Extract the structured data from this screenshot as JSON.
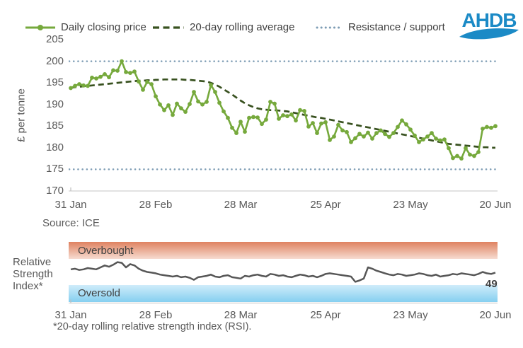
{
  "legend": {
    "items": [
      {
        "label": "Daily closing price",
        "type": "line-with-marker",
        "color": "#76A93C"
      },
      {
        "label": "20-day rolling average",
        "type": "dashed-line",
        "color": "#38511F"
      },
      {
        "label": "Resistance / support",
        "type": "dotted-line",
        "color": "#7D9CB4"
      }
    ]
  },
  "logo": {
    "text": "AHDB",
    "color": "#1B8AC6",
    "icon": "wave-swoosh"
  },
  "source_note": "Source: ICE",
  "footnote": "*20-day rolling relative strength index (RSI).",
  "rsi_panel": {
    "axis_label_lines": [
      "Relative",
      "Strength",
      "Index*"
    ],
    "overbought_label": "Overbought",
    "oversold_label": "Oversold",
    "last_value_label": "49"
  },
  "colors": {
    "price_green": "#76A93C",
    "ma_dark_green": "#38511F",
    "dotted_steel": "#7D9CB4",
    "axis_gray": "#D9D9D9",
    "rsi_line_gray": "#575757",
    "overbought_top": "#DF8260",
    "overbought_bottom": "#F6DBD0",
    "oversold_top": "#CFECFA",
    "oversold_bottom": "#85CFF0"
  },
  "chart_data": [
    {
      "type": "line",
      "title": "",
      "xlabel": "",
      "ylabel": "£ per tonne",
      "ylim": [
        170,
        205
      ],
      "yticks": [
        205,
        200,
        195,
        190,
        185,
        180,
        175,
        170
      ],
      "x_tick_labels": [
        "31 Jan",
        "28 Feb",
        "28 Mar",
        "25 Apr",
        "23 May",
        "20 Jun"
      ],
      "grid": false,
      "legend_position": "top",
      "resistance_level": 200,
      "support_level": 175,
      "series": [
        {
          "name": "Daily closing price",
          "style": "solid-markers",
          "color": "#76A93C",
          "values": [
            193.8,
            194.3,
            194.7,
            194.4,
            194.3,
            196.2,
            196.0,
            196.4,
            197.0,
            196.3,
            197.9,
            197.8,
            200.0,
            197.5,
            197.3,
            197.6,
            195.3,
            193.4,
            195.2,
            194.7,
            191.9,
            190.0,
            188.7,
            189.8,
            187.6,
            190.2,
            189.1,
            188.3,
            190.1,
            192.9,
            190.7,
            190.0,
            190.6,
            194.5,
            192.9,
            190.4,
            188.4,
            186.9,
            184.6,
            183.4,
            186.0,
            183.7,
            186.9,
            187.1,
            187.0,
            185.5,
            186.5,
            190.6,
            190.2,
            186.7,
            187.5,
            187.3,
            187.7,
            186.3,
            188.7,
            188.5,
            184.9,
            185.7,
            183.4,
            185.6,
            185.9,
            181.8,
            182.6,
            185.3,
            184.0,
            183.6,
            181.3,
            182.2,
            183.2,
            182.6,
            183.5,
            182.1,
            183.4,
            184.0,
            183.2,
            182.5,
            183.4,
            184.8,
            186.3,
            185.4,
            184.2,
            182.8,
            181.3,
            181.9,
            182.6,
            183.4,
            182.1,
            181.7,
            181.9,
            179.9,
            177.6,
            178.1,
            177.5,
            179.9,
            178.4,
            178.1,
            179.0,
            184.4,
            184.8,
            184.6,
            185.0
          ]
        },
        {
          "name": "20-day rolling average",
          "style": "dashed",
          "color": "#38511F",
          "values": [
            193.9,
            194.0,
            194.1,
            194.2,
            194.3,
            194.4,
            194.5,
            194.6,
            194.7,
            194.8,
            194.9,
            195.0,
            195.1,
            195.2,
            195.3,
            195.4,
            195.5,
            195.5,
            195.6,
            195.6,
            195.7,
            195.7,
            195.8,
            195.8,
            195.8,
            195.8,
            195.8,
            195.7,
            195.7,
            195.6,
            195.5,
            195.4,
            195.3,
            195.0,
            194.6,
            194.1,
            193.5,
            192.9,
            192.3,
            191.6,
            190.9,
            190.3,
            189.8,
            189.4,
            189.1,
            188.9,
            188.8,
            188.7,
            188.7,
            188.6,
            188.5,
            188.4,
            188.2,
            188.0,
            187.8,
            187.6,
            187.4,
            187.2,
            187.0,
            186.9,
            186.7,
            186.5,
            186.3,
            186.1,
            185.9,
            185.7,
            185.5,
            185.3,
            185.1,
            184.9,
            184.7,
            184.5,
            184.3,
            184.1,
            183.9,
            183.7,
            183.5,
            183.3,
            183.1,
            182.9,
            182.7,
            182.5,
            182.3,
            182.1,
            181.9,
            181.7,
            181.5,
            181.3,
            181.1,
            180.9,
            180.8,
            180.7,
            180.6,
            180.5,
            180.4,
            180.3,
            180.2,
            180.1,
            180.1,
            180.0,
            180.0
          ]
        },
        {
          "name": "Resistance / support",
          "style": "dotted-levels",
          "color": "#7D9CB4",
          "levels": [
            200,
            175
          ]
        }
      ],
      "source": "Source: ICE"
    },
    {
      "type": "line",
      "title": "Relative Strength Index*",
      "ylim": [
        0,
        100
      ],
      "x_tick_labels": [
        "31 Jan",
        "28 Feb",
        "28 Mar",
        "25 Apr",
        "23 May",
        "20 Jun"
      ],
      "bands": [
        {
          "label": "Overbought",
          "range": [
            70,
            100
          ]
        },
        {
          "label": "Oversold",
          "range": [
            0,
            30
          ]
        }
      ],
      "last_value": 49,
      "series": [
        {
          "name": "20-day rolling RSI",
          "style": "solid",
          "color": "#575757",
          "values": [
            54,
            55,
            53,
            54,
            56,
            55,
            54,
            57,
            60,
            58,
            61,
            65,
            64,
            57,
            62,
            60,
            55,
            52,
            50,
            49,
            48,
            46,
            45,
            44,
            43,
            44,
            42,
            43,
            41,
            38,
            42,
            43,
            44,
            46,
            43,
            42,
            44,
            45,
            42,
            41,
            40,
            44,
            43,
            45,
            46,
            44,
            43,
            47,
            46,
            44,
            45,
            43,
            42,
            44,
            46,
            45,
            43,
            44,
            42,
            44,
            47,
            48,
            47,
            46,
            45,
            44,
            43,
            35,
            37,
            40,
            57,
            55,
            52,
            50,
            48,
            46,
            45,
            47,
            46,
            44,
            45,
            46,
            48,
            47,
            45,
            44,
            46,
            43,
            44,
            45,
            47,
            46,
            48,
            47,
            46,
            45,
            47,
            50,
            48,
            47,
            49
          ]
        }
      ]
    }
  ]
}
